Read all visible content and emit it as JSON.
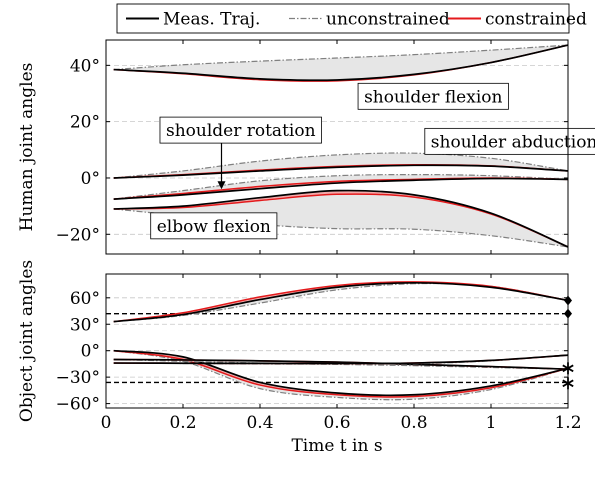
{
  "chart_data": [
    {
      "type": "line",
      "ylabel": "Human joint angles",
      "ylim": [
        -27,
        49
      ],
      "xlim": [
        0,
        1.2
      ],
      "yticks": [
        -20,
        0,
        20,
        40
      ],
      "ytick_labels": [
        "−20°",
        "0°",
        "20°",
        "40°"
      ],
      "grid": "horizontal dashed",
      "legend": {
        "placement": "top-center, above plots",
        "entries": [
          {
            "label": "Meas.  Traj.",
            "color": "#000000",
            "style": "solid"
          },
          {
            "label": "unconstrained",
            "color": "#808080",
            "style": "dash-dot"
          },
          {
            "label": "constrained",
            "color": "#e41a1c",
            "style": "solid"
          }
        ]
      },
      "annotations": [
        {
          "text": "shoulder flexion",
          "x": 0.85,
          "y": 29
        },
        {
          "text": "shoulder abduction",
          "x": 1.06,
          "y": 13
        },
        {
          "text": "shoulder rotation",
          "x": 0.35,
          "y": 17,
          "arrow_to": [
            0.3,
            -4
          ]
        },
        {
          "text": "elbow flexion",
          "x": 0.28,
          "y": -17
        }
      ],
      "series": [
        {
          "name": "shoulder flexion",
          "x": [
            0.02,
            0.2,
            0.4,
            0.6,
            0.8,
            1.0,
            1.2
          ],
          "measured": [
            38.5,
            37.2,
            35.2,
            34.8,
            36.8,
            41.0,
            47.2
          ],
          "constrained": [
            38.5,
            37.0,
            34.9,
            34.5,
            36.6,
            41.0,
            47.2
          ],
          "unconstrained": [
            38.5,
            40.2,
            41.5,
            42.6,
            43.8,
            45.4,
            47.2
          ]
        },
        {
          "name": "shoulder abduction",
          "x": [
            0.02,
            0.2,
            0.4,
            0.6,
            0.8,
            1.0,
            1.2
          ],
          "measured": [
            0,
            1.0,
            2.5,
            3.8,
            4.5,
            4.2,
            2.5
          ],
          "constrained": [
            0,
            1.2,
            2.8,
            4.1,
            4.7,
            4.3,
            2.5
          ],
          "unconstrained": [
            0,
            2.5,
            6.0,
            8.2,
            8.8,
            7.0,
            2.5
          ]
        },
        {
          "name": "shoulder rotation",
          "x": [
            0.02,
            0.2,
            0.4,
            0.6,
            0.8,
            1.0,
            1.2
          ],
          "measured": [
            -7.5,
            -6.0,
            -3.8,
            -1.8,
            -0.8,
            -0.2,
            -0.5
          ],
          "constrained": [
            -7.5,
            -5.5,
            -3.0,
            -1.2,
            -0.5,
            0.0,
            -0.5
          ],
          "unconstrained": [
            -7.5,
            -4.5,
            -1.0,
            0.8,
            1.2,
            0.8,
            -0.5
          ]
        },
        {
          "name": "elbow flexion",
          "x": [
            0.02,
            0.2,
            0.4,
            0.6,
            0.8,
            1.0,
            1.2
          ],
          "measured": [
            -11,
            -10,
            -7,
            -4.5,
            -6,
            -12.5,
            -24.5
          ],
          "constrained": [
            -11,
            -10.5,
            -8.0,
            -5.8,
            -6.8,
            -12.8,
            -24.5
          ],
          "unconstrained": [
            -11,
            -13.5,
            -16.5,
            -18.0,
            -18.2,
            -20.5,
            -24.5
          ]
        }
      ]
    },
    {
      "type": "line",
      "ylabel": "Object joint angles",
      "xlabel": "Time t in s",
      "ylim": [
        -65,
        87
      ],
      "xlim": [
        0,
        1.2
      ],
      "xticks": [
        0,
        0.2,
        0.4,
        0.6,
        0.8,
        1,
        1.2
      ],
      "xtick_labels": [
        "0",
        "0.2",
        "0.4",
        "0.6",
        "0.8",
        "1",
        "1.2"
      ],
      "yticks": [
        -60,
        -30,
        0,
        30,
        60
      ],
      "ytick_labels": [
        "−60°",
        "−30°",
        "0°",
        "30°",
        "60°"
      ],
      "grid": "horizontal dashed",
      "reference_lines": [
        42,
        -36
      ],
      "end_markers": [
        {
          "x": 1.2,
          "y": 57,
          "shape": "diamond"
        },
        {
          "x": 1.2,
          "y": 42,
          "shape": "diamond"
        },
        {
          "x": 1.2,
          "y": -20,
          "shape": "star"
        },
        {
          "x": 1.2,
          "y": -37,
          "shape": "star"
        }
      ],
      "series": [
        {
          "name": "",
          "x": [
            0.02,
            0.2,
            0.4,
            0.6,
            0.8,
            1.0,
            1.2
          ],
          "measured": [
            33,
            41,
            58,
            72,
            77,
            72,
            57
          ],
          "constrained": [
            33,
            43,
            61,
            74,
            78,
            73,
            57
          ],
          "unconstrained": [
            33,
            40,
            54,
            69,
            76,
            73,
            57
          ]
        },
        {
          "name": "",
          "x": [
            0.02,
            0.2,
            0.4,
            0.6,
            0.8,
            1.0,
            1.2
          ],
          "measured": [
            0,
            -7,
            -36,
            -48,
            -50,
            -40,
            -20
          ],
          "constrained": [
            0,
            -10,
            -39,
            -50,
            -52,
            -42,
            -20
          ],
          "unconstrained": [
            0,
            -12,
            -43,
            -53,
            -55,
            -44,
            -20
          ]
        },
        {
          "name": "",
          "x": [
            0.02,
            0.2,
            0.4,
            0.6,
            0.8,
            1.0,
            1.2
          ],
          "measured": [
            -10,
            -10.5,
            -11.5,
            -13,
            -15.5,
            -18,
            -21
          ],
          "constrained": [
            -10,
            -10.5,
            -11.5,
            -13,
            -15.5,
            -18,
            -21
          ],
          "unconstrained": [
            -10,
            -12,
            -14,
            -15.5,
            -17,
            -19,
            -21
          ]
        },
        {
          "name": "",
          "x": [
            0.02,
            0.2,
            0.4,
            0.6,
            0.8,
            1.0,
            1.2
          ],
          "measured": [
            -14,
            -14.2,
            -14.4,
            -14.5,
            -14,
            -11,
            -5
          ],
          "constrained": [
            -14,
            -14.2,
            -14.4,
            -14.5,
            -14,
            -11,
            -5
          ],
          "unconstrained": [
            -14,
            -14.5,
            -15,
            -15.2,
            -14.8,
            -11.5,
            -5
          ]
        }
      ]
    }
  ]
}
